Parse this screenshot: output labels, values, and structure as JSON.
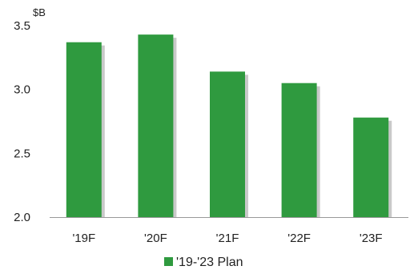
{
  "chart_data": {
    "type": "bar",
    "categories": [
      "'19F",
      "'20F",
      "'21F",
      "'22F",
      "'23F"
    ],
    "series": [
      {
        "name": "'19-'23 Plan",
        "values": [
          3.37,
          3.43,
          3.14,
          3.05,
          2.78
        ]
      }
    ],
    "unit_label": "$B",
    "ylim": [
      2.0,
      3.5
    ],
    "yticks": [
      "2.0",
      "2.5",
      "3.0",
      "3.5"
    ],
    "grid": false,
    "legend_position": "bottom",
    "colors": {
      "bar": "#2f9a3f",
      "shadow": "#c9c9c9",
      "axis": "#999999"
    }
  }
}
